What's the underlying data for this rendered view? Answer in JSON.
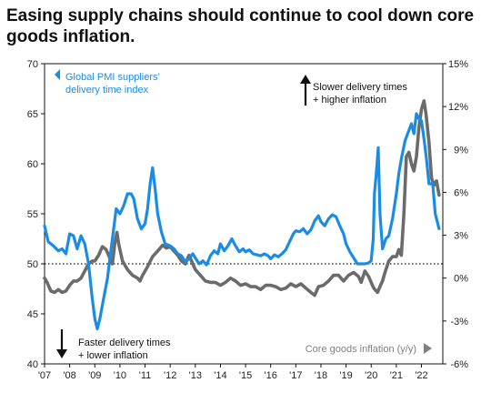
{
  "title": "Easing supply chains should continue to cool down core goods inflation.",
  "colors": {
    "pmi": "#1a8ce6",
    "core": "#6b6b6b",
    "text": "#222222",
    "arrow_gray": "#808080"
  },
  "annotations": {
    "pmi_legend_line1": "Global PMI suppliers’",
    "pmi_legend_line2": "delivery time index",
    "slower_line1": "Slower delivery times",
    "slower_line2": "+ higher inflation",
    "faster_line1": "Faster delivery times",
    "faster_line2": "+ lower inflation",
    "core_legend": "Core goods inflation (y/y)"
  },
  "chart_data": {
    "type": "line",
    "x_ticks": [
      "'07",
      "'08",
      "'09",
      "'10",
      "'11",
      "'12",
      "'13",
      "'14",
      "'15",
      "'16",
      "'17",
      "'18",
      "'19",
      "'20",
      "'21",
      "'22"
    ],
    "y_left": {
      "min": 40,
      "max": 70,
      "ticks": [
        "40",
        "45",
        "50",
        "55",
        "60",
        "65",
        "70"
      ]
    },
    "y_right": {
      "min": -6,
      "max": 15,
      "ticks": [
        "-6%",
        "-3%",
        "0%",
        "3%",
        "6%",
        "9%",
        "12%",
        "15%"
      ]
    },
    "reference_line": {
      "axis": "left",
      "value": 50,
      "style": "dotted"
    },
    "series": [
      {
        "name": "Global PMI suppliers’ delivery time index",
        "axis": "left",
        "points": [
          [
            2007.0,
            53.8
          ],
          [
            2007.15,
            52.2
          ],
          [
            2007.35,
            51.8
          ],
          [
            2007.55,
            51.3
          ],
          [
            2007.7,
            51.5
          ],
          [
            2007.85,
            51.0
          ],
          [
            2008.0,
            53.0
          ],
          [
            2008.15,
            52.8
          ],
          [
            2008.3,
            51.5
          ],
          [
            2008.45,
            52.8
          ],
          [
            2008.6,
            52.0
          ],
          [
            2008.75,
            50.0
          ],
          [
            2008.9,
            46.5
          ],
          [
            2009.0,
            44.5
          ],
          [
            2009.1,
            43.5
          ],
          [
            2009.2,
            44.5
          ],
          [
            2009.35,
            46.5
          ],
          [
            2009.5,
            48.5
          ],
          [
            2009.65,
            51.5
          ],
          [
            2009.75,
            53.5
          ],
          [
            2009.85,
            55.5
          ],
          [
            2010.0,
            55.0
          ],
          [
            2010.15,
            55.8
          ],
          [
            2010.3,
            57.0
          ],
          [
            2010.45,
            57.0
          ],
          [
            2010.55,
            56.5
          ],
          [
            2010.7,
            54.5
          ],
          [
            2010.85,
            53.5
          ],
          [
            2011.0,
            54.0
          ],
          [
            2011.1,
            55.5
          ],
          [
            2011.2,
            58.0
          ],
          [
            2011.3,
            59.6
          ],
          [
            2011.4,
            57.5
          ],
          [
            2011.5,
            55.0
          ],
          [
            2011.65,
            53.2
          ],
          [
            2011.8,
            52.0
          ],
          [
            2012.0,
            51.8
          ],
          [
            2012.15,
            51.5
          ],
          [
            2012.3,
            51.0
          ],
          [
            2012.45,
            50.8
          ],
          [
            2012.6,
            50.2
          ],
          [
            2012.75,
            50.5
          ],
          [
            2012.9,
            51.0
          ],
          [
            2013.0,
            50.6
          ],
          [
            2013.15,
            50.0
          ],
          [
            2013.3,
            50.3
          ],
          [
            2013.45,
            49.9
          ],
          [
            2013.6,
            50.8
          ],
          [
            2013.75,
            51.3
          ],
          [
            2013.9,
            51.0
          ],
          [
            2014.0,
            52.0
          ],
          [
            2014.15,
            51.3
          ],
          [
            2014.3,
            51.8
          ],
          [
            2014.45,
            52.5
          ],
          [
            2014.6,
            51.8
          ],
          [
            2014.75,
            51.2
          ],
          [
            2014.9,
            51.5
          ],
          [
            2015.0,
            51.2
          ],
          [
            2015.15,
            51.4
          ],
          [
            2015.3,
            51.0
          ],
          [
            2015.45,
            50.9
          ],
          [
            2015.6,
            50.8
          ],
          [
            2015.75,
            51.0
          ],
          [
            2015.9,
            50.8
          ],
          [
            2016.0,
            50.5
          ],
          [
            2016.15,
            50.9
          ],
          [
            2016.3,
            50.7
          ],
          [
            2016.45,
            51.0
          ],
          [
            2016.6,
            51.4
          ],
          [
            2016.75,
            52.2
          ],
          [
            2016.9,
            53.0
          ],
          [
            2017.0,
            53.3
          ],
          [
            2017.15,
            53.2
          ],
          [
            2017.3,
            53.5
          ],
          [
            2017.45,
            53.0
          ],
          [
            2017.6,
            53.4
          ],
          [
            2017.75,
            54.3
          ],
          [
            2017.9,
            54.8
          ],
          [
            2018.0,
            54.2
          ],
          [
            2018.15,
            53.8
          ],
          [
            2018.3,
            54.5
          ],
          [
            2018.45,
            54.9
          ],
          [
            2018.6,
            54.7
          ],
          [
            2018.75,
            53.8
          ],
          [
            2018.9,
            53.0
          ],
          [
            2019.0,
            52.0
          ],
          [
            2019.15,
            51.2
          ],
          [
            2019.3,
            50.6
          ],
          [
            2019.45,
            50.0
          ],
          [
            2019.6,
            50.0
          ],
          [
            2019.75,
            50.0
          ],
          [
            2019.9,
            50.1
          ],
          [
            2020.0,
            50.3
          ],
          [
            2020.08,
            52.5
          ],
          [
            2020.13,
            57.0
          ],
          [
            2020.2,
            59.0
          ],
          [
            2020.28,
            61.6
          ],
          [
            2020.35,
            55.0
          ],
          [
            2020.45,
            51.5
          ],
          [
            2020.58,
            52.5
          ],
          [
            2020.7,
            52.8
          ],
          [
            2020.85,
            54.5
          ],
          [
            2021.0,
            57.0
          ],
          [
            2021.1,
            59.0
          ],
          [
            2021.2,
            60.5
          ],
          [
            2021.35,
            62.3
          ],
          [
            2021.45,
            63.0
          ],
          [
            2021.6,
            64.0
          ],
          [
            2021.7,
            63.0
          ],
          [
            2021.8,
            65.0
          ],
          [
            2021.9,
            64.5
          ],
          [
            2022.0,
            64.3
          ],
          [
            2022.1,
            62.5
          ],
          [
            2022.2,
            60.5
          ],
          [
            2022.3,
            58.0
          ],
          [
            2022.45,
            58.0
          ],
          [
            2022.55,
            55.0
          ],
          [
            2022.7,
            53.5
          ]
        ]
      },
      {
        "name": "Core goods inflation (y/y)",
        "axis": "right",
        "points": [
          [
            2007.0,
            0.0
          ],
          [
            2007.1,
            -0.3
          ],
          [
            2007.25,
            -0.9
          ],
          [
            2007.4,
            -1.0
          ],
          [
            2007.55,
            -0.8
          ],
          [
            2007.7,
            -1.0
          ],
          [
            2007.85,
            -0.9
          ],
          [
            2008.0,
            -0.5
          ],
          [
            2008.15,
            -0.2
          ],
          [
            2008.3,
            -0.2
          ],
          [
            2008.45,
            0.0
          ],
          [
            2008.6,
            0.5
          ],
          [
            2008.75,
            1.0
          ],
          [
            2008.9,
            1.2
          ],
          [
            2009.0,
            1.2
          ],
          [
            2009.15,
            1.6
          ],
          [
            2009.3,
            2.2
          ],
          [
            2009.45,
            2.0
          ],
          [
            2009.6,
            1.4
          ],
          [
            2009.7,
            1.0
          ],
          [
            2009.8,
            2.5
          ],
          [
            2009.88,
            3.2
          ],
          [
            2009.95,
            2.4
          ],
          [
            2010.1,
            1.2
          ],
          [
            2010.3,
            0.6
          ],
          [
            2010.5,
            0.2
          ],
          [
            2010.7,
            0.0
          ],
          [
            2010.8,
            -0.2
          ],
          [
            2010.9,
            0.2
          ],
          [
            2011.1,
            0.8
          ],
          [
            2011.3,
            1.5
          ],
          [
            2011.5,
            1.9
          ],
          [
            2011.7,
            2.3
          ],
          [
            2011.85,
            2.1
          ],
          [
            2012.0,
            2.2
          ],
          [
            2012.15,
            1.9
          ],
          [
            2012.3,
            1.6
          ],
          [
            2012.45,
            1.2
          ],
          [
            2012.6,
            1.0
          ],
          [
            2012.75,
            1.6
          ],
          [
            2012.9,
            1.0
          ],
          [
            2013.0,
            0.6
          ],
          [
            2013.2,
            0.2
          ],
          [
            2013.4,
            -0.2
          ],
          [
            2013.6,
            -0.3
          ],
          [
            2013.8,
            -0.3
          ],
          [
            2014.0,
            -0.5
          ],
          [
            2014.2,
            -0.3
          ],
          [
            2014.4,
            0.0
          ],
          [
            2014.6,
            -0.2
          ],
          [
            2014.8,
            -0.5
          ],
          [
            2015.0,
            -0.4
          ],
          [
            2015.2,
            -0.6
          ],
          [
            2015.4,
            -0.6
          ],
          [
            2015.6,
            -0.8
          ],
          [
            2015.8,
            -0.5
          ],
          [
            2016.0,
            -0.5
          ],
          [
            2016.2,
            -0.6
          ],
          [
            2016.4,
            -0.8
          ],
          [
            2016.6,
            -0.7
          ],
          [
            2016.8,
            -0.4
          ],
          [
            2017.0,
            -0.6
          ],
          [
            2017.2,
            -0.4
          ],
          [
            2017.4,
            -0.7
          ],
          [
            2017.6,
            -1.0
          ],
          [
            2017.75,
            -1.2
          ],
          [
            2017.9,
            -0.6
          ],
          [
            2018.1,
            -0.5
          ],
          [
            2018.3,
            -0.2
          ],
          [
            2018.5,
            0.2
          ],
          [
            2018.7,
            0.2
          ],
          [
            2018.9,
            -0.2
          ],
          [
            2019.1,
            0.2
          ],
          [
            2019.3,
            0.4
          ],
          [
            2019.5,
            0.1
          ],
          [
            2019.6,
            -0.3
          ],
          [
            2019.75,
            0.5
          ],
          [
            2019.9,
            0.1
          ],
          [
            2020.0,
            -0.3
          ],
          [
            2020.1,
            -0.7
          ],
          [
            2020.25,
            -1.0
          ],
          [
            2020.35,
            -0.6
          ],
          [
            2020.45,
            -0.2
          ],
          [
            2020.55,
            0.4
          ],
          [
            2020.7,
            1.2
          ],
          [
            2020.85,
            1.5
          ],
          [
            2021.0,
            1.5
          ],
          [
            2021.1,
            2.0
          ],
          [
            2021.2,
            1.6
          ],
          [
            2021.3,
            4.5
          ],
          [
            2021.4,
            8.5
          ],
          [
            2021.5,
            8.8
          ],
          [
            2021.6,
            8.0
          ],
          [
            2021.7,
            7.5
          ],
          [
            2021.8,
            8.5
          ],
          [
            2021.9,
            10.5
          ],
          [
            2022.0,
            11.8
          ],
          [
            2022.1,
            12.4
          ],
          [
            2022.18,
            11.5
          ],
          [
            2022.3,
            9.5
          ],
          [
            2022.4,
            7.0
          ],
          [
            2022.5,
            6.5
          ],
          [
            2022.6,
            6.8
          ],
          [
            2022.7,
            5.8
          ]
        ]
      }
    ]
  }
}
